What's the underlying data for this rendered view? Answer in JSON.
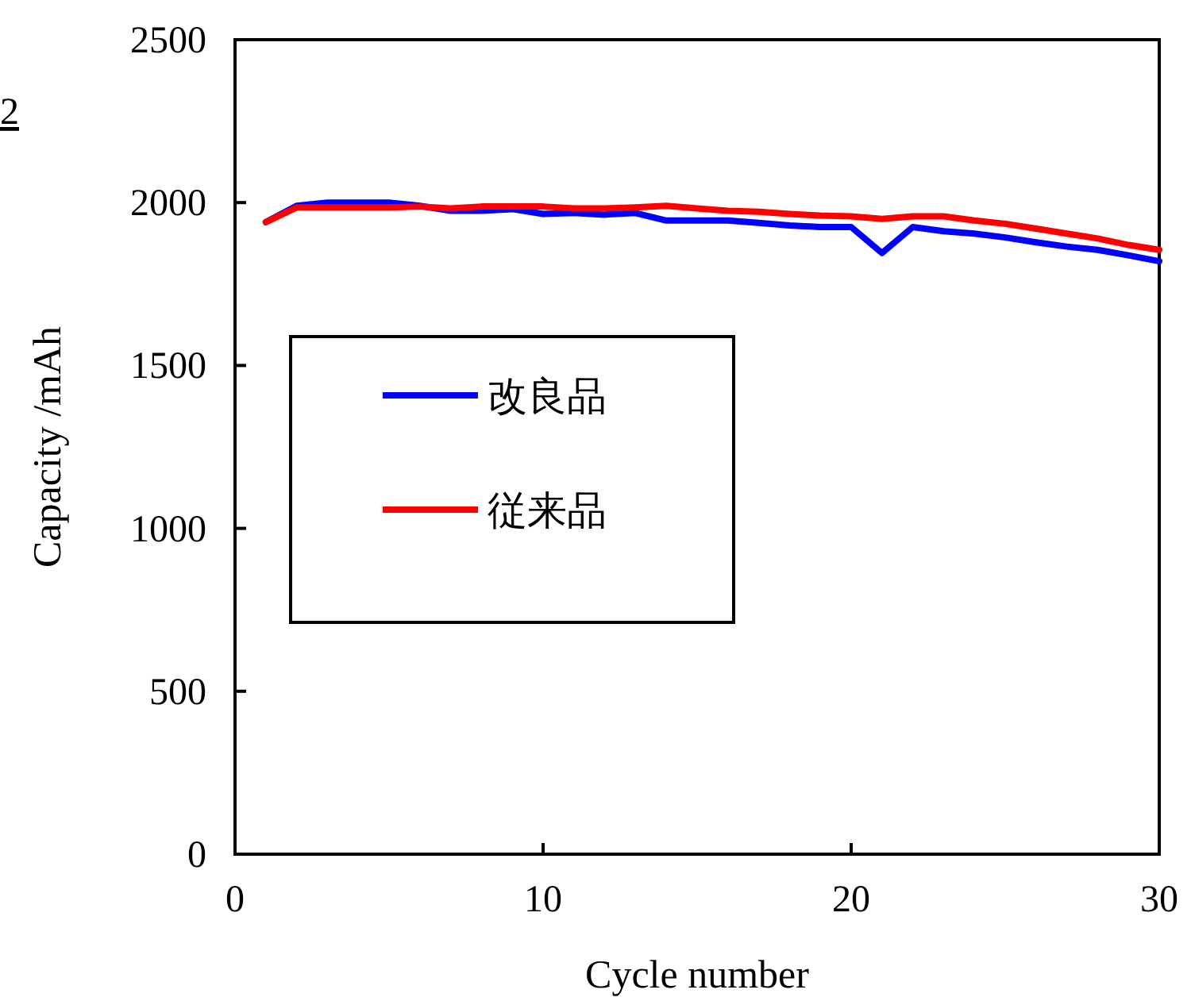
{
  "chart_data": {
    "type": "line",
    "xlabel": "Cycle number",
    "ylabel": "Capacity /mAh",
    "x": [
      1,
      2,
      3,
      4,
      5,
      6,
      7,
      8,
      9,
      10,
      11,
      12,
      13,
      14,
      15,
      16,
      17,
      18,
      19,
      20,
      21,
      22,
      23,
      24,
      25,
      26,
      27,
      28,
      29,
      30
    ],
    "series": [
      {
        "name": "改良品",
        "color": "#0000ff",
        "values": [
          1940,
          1990,
          2000,
          2000,
          2000,
          1990,
          1975,
          1975,
          1980,
          1965,
          1968,
          1963,
          1968,
          1945,
          1945,
          1945,
          1938,
          1930,
          1925,
          1925,
          1845,
          1925,
          1912,
          1905,
          1893,
          1878,
          1865,
          1855,
          1838,
          1820
        ]
      },
      {
        "name": "従来品",
        "color": "#ff0000",
        "values": [
          1940,
          1985,
          1985,
          1985,
          1985,
          1988,
          1982,
          1988,
          1988,
          1988,
          1982,
          1982,
          1985,
          1990,
          1982,
          1975,
          1972,
          1965,
          1960,
          1958,
          1950,
          1958,
          1958,
          1945,
          1935,
          1920,
          1905,
          1890,
          1870,
          1855
        ]
      }
    ],
    "xlim": [
      0,
      30
    ],
    "xticks": [
      0,
      10,
      20,
      30
    ],
    "ylim": [
      0,
      2500
    ],
    "yticks": [
      0,
      500,
      1000,
      1500,
      2000,
      2500
    ],
    "legend": "left",
    "grid": false,
    "marker": "none",
    "line_style": "solid",
    "annotations": [
      "2"
    ]
  }
}
